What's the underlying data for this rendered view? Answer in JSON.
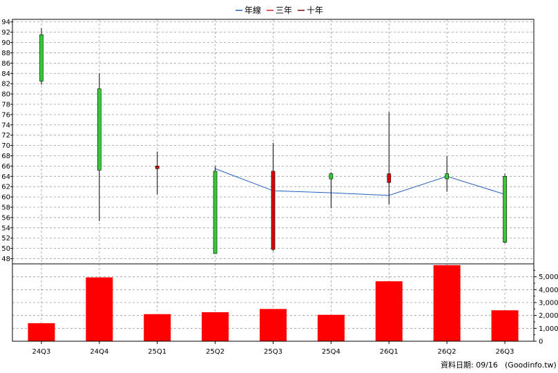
{
  "chart_data": {
    "type": "candlestick",
    "legend": {
      "position": "top-center",
      "items": [
        {
          "label": "年線",
          "color": "#1f5fbf"
        },
        {
          "label": "三年",
          "color": "#e02020"
        },
        {
          "label": "十年",
          "color": "#800000"
        }
      ]
    },
    "categories": [
      "24Q3",
      "24Q4",
      "25Q1",
      "25Q2",
      "25Q3",
      "25Q4",
      "26Q1",
      "26Q2",
      "26Q3"
    ],
    "price": {
      "ylim": [
        47,
        94.5
      ],
      "yticks": [
        48,
        50,
        52,
        54,
        56,
        58,
        60,
        62,
        64,
        66,
        68,
        70,
        72,
        74,
        76,
        78,
        80,
        82,
        84,
        86,
        88,
        90,
        92,
        94
      ],
      "candles": [
        {
          "open": 82.5,
          "high": 92.8,
          "low": 81.8,
          "close": 91.5
        },
        {
          "open": 65.2,
          "high": 84.0,
          "low": 55.3,
          "close": 81.0
        },
        {
          "open": 66.0,
          "high": 68.8,
          "low": 60.5,
          "close": 65.5
        },
        {
          "open": 49.0,
          "high": 66.0,
          "low": 49.0,
          "close": 65.0
        },
        {
          "open": 65.0,
          "high": 70.5,
          "low": 49.5,
          "close": 49.8
        },
        {
          "open": 63.5,
          "high": 64.8,
          "low": 57.8,
          "close": 64.5
        },
        {
          "open": 64.5,
          "high": 76.5,
          "low": 58.5,
          "close": 62.8
        },
        {
          "open": 63.5,
          "high": 68.0,
          "low": 61.0,
          "close": 64.5
        },
        {
          "open": 51.2,
          "high": 64.5,
          "low": 51.0,
          "close": 64.0
        }
      ],
      "up_color": "#33cc33",
      "down_color": "#dd0000",
      "annual_line": {
        "name": "年線",
        "color": "#1f5fbf",
        "start_index": 3,
        "values": [
          65.5,
          61.2,
          60.8,
          60.3,
          64.0,
          60.5
        ]
      }
    },
    "volume": {
      "ylim": [
        0,
        6000
      ],
      "tick_labels": [
        "0",
        "1,000",
        "2,000",
        "3,000",
        "4,000",
        "5,000"
      ],
      "tick_values": [
        0,
        1000,
        2000,
        3000,
        4000,
        5000
      ],
      "values": [
        1400,
        4950,
        2100,
        2250,
        2500,
        2050,
        4650,
        5900,
        2400
      ],
      "color": "#ff0000"
    }
  },
  "footer": {
    "date_text": "資料日期: 09/16",
    "source_text": "(Goodinfo.tw)"
  }
}
